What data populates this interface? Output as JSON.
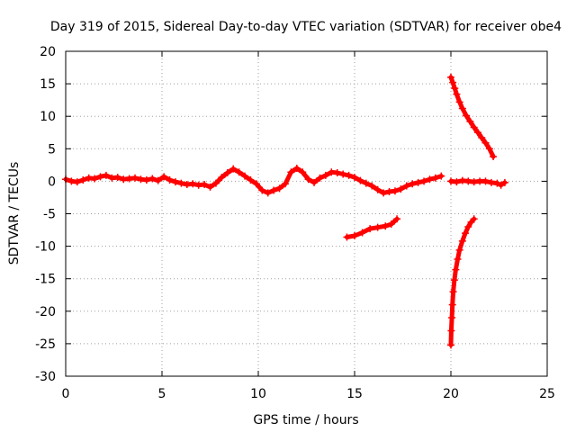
{
  "chart_data": {
    "type": "scatter",
    "title": "Day 319 of 2015, Sidereal Day-to-day VTEC variation (SDTVAR) for receiver obe4",
    "xlabel": "GPS time / hours",
    "ylabel": "SDTVAR / TECUs",
    "xlim": [
      0,
      25
    ],
    "ylim": [
      -30,
      20
    ],
    "xticks": [
      0,
      5,
      10,
      15,
      20,
      25
    ],
    "yticks": [
      -30,
      -25,
      -20,
      -15,
      -10,
      -5,
      0,
      5,
      10,
      15,
      20
    ],
    "grid": true,
    "legend": "none",
    "marker": "+",
    "series_color": "#ff0000",
    "series": [
      {
        "name": "main trace",
        "x": [
          0.0,
          0.3,
          0.6,
          0.9,
          1.2,
          1.5,
          1.8,
          2.1,
          2.4,
          2.7,
          3.0,
          3.3,
          3.6,
          3.9,
          4.2,
          4.5,
          4.8,
          5.1,
          5.4,
          5.7,
          6.0,
          6.3,
          6.6,
          6.9,
          7.2,
          7.5,
          7.8,
          8.1,
          8.4,
          8.7,
          9.0,
          9.3,
          9.6,
          9.9,
          10.2,
          10.5,
          10.8,
          11.1,
          11.4,
          11.7,
          12.0,
          12.3,
          12.6,
          12.9,
          13.2,
          13.5,
          13.8,
          14.1,
          14.4,
          14.7,
          15.0,
          15.3,
          15.6,
          15.9,
          16.2,
          16.5,
          16.8,
          17.1,
          17.4,
          17.7,
          18.0,
          18.3,
          18.6,
          18.9,
          19.2,
          19.5
        ],
        "y": [
          0.3,
          0.0,
          -0.1,
          0.2,
          0.5,
          0.4,
          0.7,
          0.9,
          0.5,
          0.6,
          0.3,
          0.4,
          0.5,
          0.3,
          0.2,
          0.4,
          0.1,
          0.7,
          0.2,
          -0.1,
          -0.3,
          -0.5,
          -0.4,
          -0.6,
          -0.5,
          -0.9,
          -0.3,
          0.6,
          1.3,
          1.9,
          1.4,
          0.8,
          0.2,
          -0.4,
          -1.4,
          -1.8,
          -1.4,
          -1.1,
          -0.4,
          1.4,
          2.0,
          1.4,
          0.3,
          -0.2,
          0.5,
          0.9,
          1.4,
          1.3,
          1.1,
          0.9,
          0.6,
          0.1,
          -0.3,
          -0.7,
          -1.3,
          -1.8,
          -1.6,
          -1.5,
          -1.2,
          -0.7,
          -0.4,
          -0.2,
          0.0,
          0.3,
          0.5,
          0.8
        ]
      },
      {
        "name": "segment 14.6-17.2 h",
        "x": [
          14.6,
          15.0,
          15.4,
          15.8,
          16.2,
          16.6,
          16.9,
          17.2
        ],
        "y": [
          -8.6,
          -8.4,
          -7.9,
          -7.3,
          -7.1,
          -6.9,
          -6.6,
          -5.8
        ]
      },
      {
        "name": "descending arc 20.0-22.2 h",
        "x": [
          20.0,
          20.1,
          20.2,
          20.3,
          20.45,
          20.6,
          20.8,
          21.0,
          21.2,
          21.4,
          21.6,
          21.8,
          22.0,
          22.2
        ],
        "y": [
          16.0,
          15.2,
          14.3,
          13.4,
          12.2,
          11.2,
          10.1,
          9.2,
          8.3,
          7.5,
          6.7,
          5.9,
          5.0,
          3.8
        ]
      },
      {
        "name": "flat segment 20.0-22.8 h",
        "x": [
          20.0,
          20.3,
          20.6,
          20.9,
          21.2,
          21.5,
          21.8,
          22.1,
          22.4,
          22.6,
          22.8
        ],
        "y": [
          0.0,
          -0.1,
          0.1,
          0.0,
          -0.1,
          0.0,
          0.0,
          -0.2,
          -0.3,
          -0.6,
          -0.2
        ]
      },
      {
        "name": "rising arc 20.0-21.2 h",
        "x": [
          20.0,
          20.02,
          20.05,
          20.08,
          20.12,
          20.18,
          20.25,
          20.35,
          20.45,
          20.6,
          20.75,
          20.9,
          21.05,
          21.2
        ],
        "y": [
          -25.2,
          -23.0,
          -21.0,
          -19.0,
          -17.0,
          -15.2,
          -13.6,
          -12.0,
          -10.6,
          -9.2,
          -8.0,
          -7.0,
          -6.3,
          -5.8
        ]
      }
    ]
  }
}
